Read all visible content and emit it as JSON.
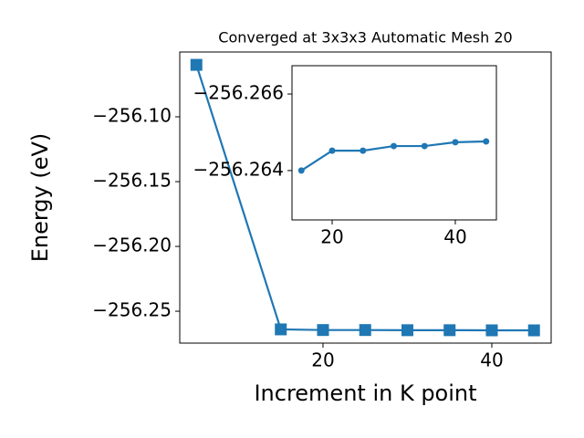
{
  "chart_data": [
    {
      "type": "line",
      "title": "Converged at 3x3x3 Automatic Mesh 20",
      "xlabel": "Increment in K point",
      "ylabel": "Energy (eV)",
      "x": [
        5,
        15,
        20,
        25,
        30,
        35,
        40,
        45
      ],
      "series": [
        {
          "color": "#1f77b4",
          "marker": "square",
          "values": [
            -256.0599,
            -256.264,
            -256.26452,
            -256.26452,
            -256.26464,
            -256.26464,
            -256.26474,
            -256.26476
          ]
        }
      ],
      "xlim": [
        3.03,
        47.03
      ],
      "ylim": [
        -256.2746,
        -256.05
      ],
      "xticks": [
        20,
        40
      ],
      "yticks": [
        {
          "value": -256.1,
          "label": "−256.10"
        },
        {
          "value": -256.15,
          "label": "−256.15"
        },
        {
          "value": -256.2,
          "label": "−256.20"
        },
        {
          "value": -256.25,
          "label": "−256.25"
        }
      ]
    },
    {
      "type": "line",
      "x": [
        15,
        20,
        25,
        30,
        35,
        40,
        45
      ],
      "series": [
        {
          "color": "#1f77b4",
          "marker": "circle",
          "values": [
            -256.264,
            -256.26452,
            -256.26452,
            -256.26464,
            -256.26464,
            -256.26474,
            -256.26476
          ]
        }
      ],
      "xlim": [
        13.48,
        46.67
      ],
      "ylim": [
        -256.26271,
        -256.26674
      ],
      "xticks": [
        20,
        40
      ],
      "yticks": [
        {
          "value": -256.266,
          "label": "−256.266"
        },
        {
          "value": -256.264,
          "label": "−256.264"
        }
      ]
    }
  ]
}
